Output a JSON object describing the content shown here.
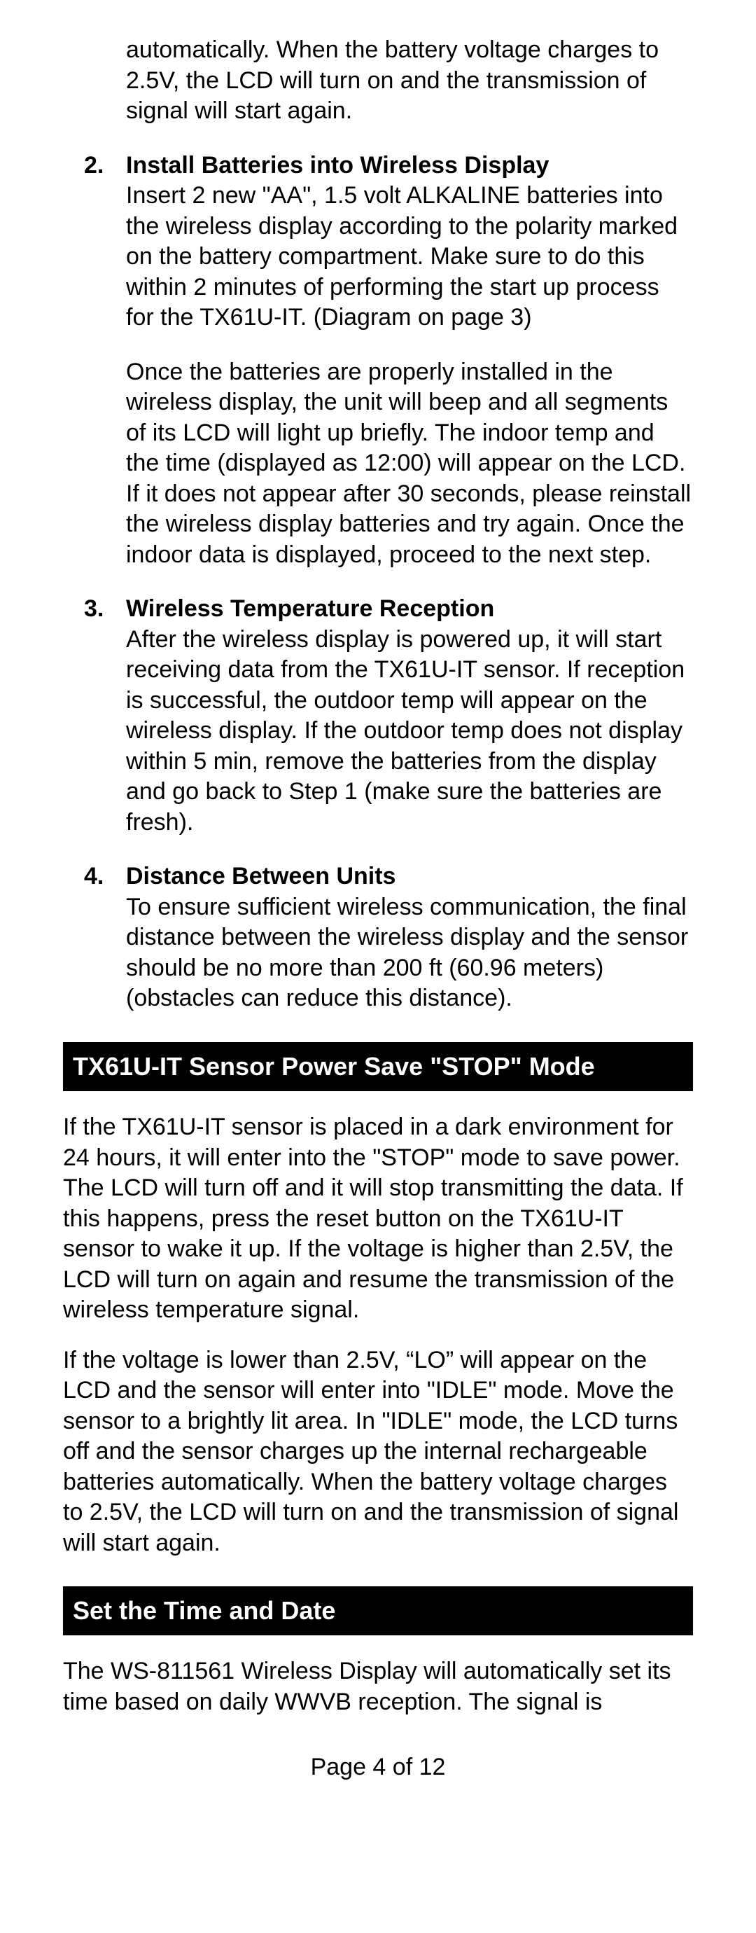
{
  "intro_continuation": "automatically. When the battery voltage charges to 2.5V, the LCD will turn on and the transmission of signal will start again.",
  "items": [
    {
      "num": "2.",
      "title": "Install Batteries into Wireless Display",
      "paras": [
        "Insert 2 new \"AA\", 1.5 volt ALKALINE batteries into the wireless display according to the polarity marked on the battery compartment. Make sure to do this within 2 minutes of performing the start up process for the TX61U-IT. (Diagram on page 3)",
        "Once the batteries are properly installed in the wireless display, the unit will beep and all segments of its LCD will light up briefly. The indoor temp and the time (displayed as 12:00) will appear on the LCD. If it does not appear after 30 seconds, please reinstall the wireless display batteries and try again. Once the indoor data is displayed, proceed to the next step."
      ]
    },
    {
      "num": "3.",
      "title": "Wireless Temperature Reception",
      "paras": [
        "After the wireless display is powered up, it will start receiving data from the TX61U-IT sensor. If reception is successful, the outdoor temp will appear on the wireless display. If the outdoor temp does not display within 5 min, remove the batteries from the display and go back to Step 1 (make sure the batteries are fresh)."
      ]
    },
    {
      "num": "4.",
      "title": "Distance Between Units",
      "paras": [
        "To ensure sufficient wireless communication, the final distance between the wireless display and the sensor should be no more than 200 ft (60.96 meters) (obstacles can reduce this distance)."
      ]
    }
  ],
  "section1": {
    "header": "TX61U-IT Sensor Power Save \"STOP\" Mode",
    "paras": [
      "If the TX61U-IT sensor is placed in a dark environment for 24 hours, it will enter into the \"STOP\" mode to save power. The LCD will turn off and it will stop transmitting the data. If this happens, press the reset button on the TX61U-IT sensor to wake it up. If the voltage is higher than 2.5V, the LCD will turn on again and resume the transmission of the wireless temperature signal.",
      "If the voltage is lower than 2.5V, “LO” will appear on the LCD and the sensor will enter into \"IDLE\" mode. Move the sensor to a brightly lit area. In \"IDLE\" mode, the LCD turns off and the sensor charges up the internal rechargeable batteries automatically. When the battery voltage charges to 2.5V, the LCD will turn on and the transmission of signal will start again."
    ]
  },
  "section2": {
    "header": "Set the Time and Date",
    "paras": [
      "The WS-811561 Wireless Display will automatically set its time based on daily WWVB reception. The signal is"
    ]
  },
  "footer": "Page 4 of 12"
}
